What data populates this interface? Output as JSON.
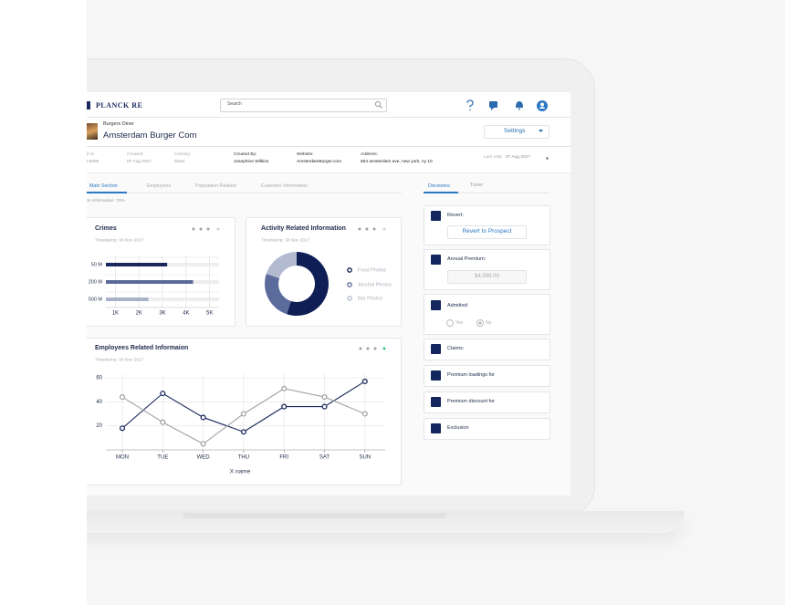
{
  "header": {
    "brand": "PLANCK RE",
    "search": "Search"
  },
  "business": {
    "category": "Burgers Diner",
    "name": "Amsterdam Burger Com",
    "settings": "Settings"
  },
  "info": [
    {
      "label": "ated Id",
      "value": "298-0006"
    },
    {
      "label": "Created:",
      "value": "07 Aug 2017"
    },
    {
      "label": "Industry:",
      "value": "Diner"
    },
    {
      "label": "Created By:",
      "value": "Josephine Wilkins"
    },
    {
      "label": "Website:",
      "value": "AmsterdamBurger.com"
    },
    {
      "label": "Address:",
      "value": "654 amsterdam ave, new york, ny 10"
    },
    {
      "label": "Last Visit:",
      "value": "07 Aug 2017"
    }
  ],
  "tabs": [
    "Main Section",
    "Employees",
    "Population Related",
    "Customer Information"
  ],
  "note": "ghts Information: 70%",
  "chart_data": [
    {
      "type": "bar",
      "orientation": "horizontal",
      "title": "Crimes",
      "subtitle": "Timestamp: 30 Nov 2017",
      "categories": [
        "50 M",
        "200 M",
        "500 M"
      ],
      "values": [
        3200,
        4300,
        2400
      ],
      "colors": [
        "#18275c",
        "#5a6b98",
        "#a9b2c9"
      ],
      "xlim": [
        600,
        5400
      ],
      "xticks": [
        {
          "value": 1000,
          "label": "1K"
        },
        {
          "value": 2000,
          "label": "2K"
        },
        {
          "value": 3000,
          "label": "3K"
        },
        {
          "value": 4000,
          "label": "4K"
        },
        {
          "value": 5000,
          "label": "5K"
        }
      ],
      "grid": true
    },
    {
      "type": "pie",
      "donut": true,
      "title": "Activity Related Information",
      "subtitle": "Timestamp: 30 Nov 2017",
      "categories": [
        "Food Photos",
        "Alcohol Photos",
        "Bar Photos"
      ],
      "values": [
        55,
        25,
        20
      ],
      "colors": [
        "#0f1f56",
        "#5b6b9c",
        "#b3bbd0"
      ],
      "legend": "right"
    },
    {
      "type": "line",
      "title": "Employees Related Informaion",
      "subtitle": "Timestamp: 30 Nov 2017",
      "x_label": "X name",
      "categories": [
        "MON",
        "TUE",
        "WED",
        "THU",
        "FRI",
        "SAT",
        "SUN"
      ],
      "series": [
        {
          "color": "#1b2a5e",
          "values": [
            18,
            47,
            27,
            15,
            36,
            36,
            57
          ]
        },
        {
          "color": "#a3a3a3",
          "values": [
            44,
            23,
            5,
            30,
            51,
            44,
            30
          ]
        }
      ],
      "ylim": [
        0,
        60
      ],
      "yticks": [
        20,
        40,
        60
      ],
      "grid": true
    }
  ],
  "sidebar": {
    "tabs": [
      "Decisions",
      "Tuner"
    ],
    "revert": {
      "label": "Revert:",
      "button": "Revert to Prospect"
    },
    "premium": {
      "label": "Annual Premium:",
      "value": "$4,999.00"
    },
    "admitted": {
      "label": "Admitted:",
      "options": [
        "Yes",
        "No"
      ]
    },
    "sections": [
      "Claims:",
      "Premium loadings for",
      "Premium discount for",
      "Exclusion"
    ]
  }
}
